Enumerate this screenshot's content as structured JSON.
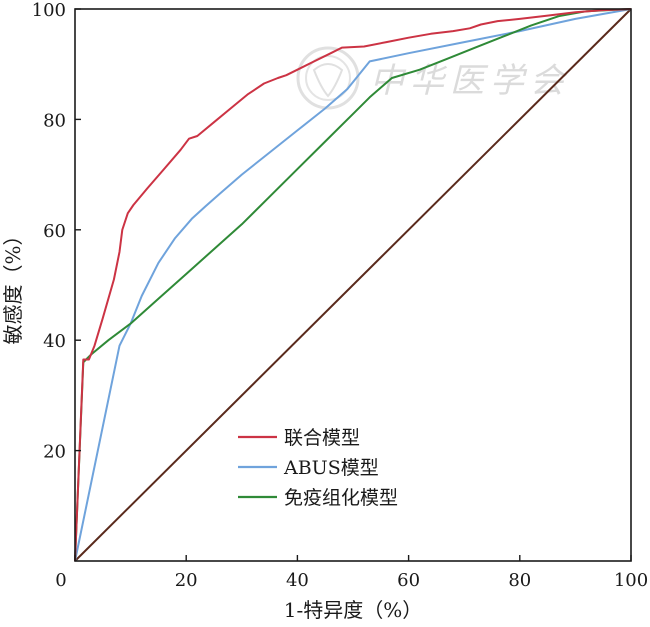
{
  "chart_data": {
    "type": "line",
    "xlabel": "1-特异度（%）",
    "ylabel": "敏感度（%）",
    "xlim": [
      0,
      100
    ],
    "ylim": [
      0,
      100
    ],
    "x_ticks": [
      "0",
      "20",
      "40",
      "60",
      "80",
      "100"
    ],
    "y_ticks": [
      "20",
      "40",
      "60",
      "80",
      "100"
    ],
    "grid": false,
    "legend_position": "bottom-center",
    "series": [
      {
        "name": "联合模型",
        "color": "#cc3344",
        "points": [
          [
            0,
            0
          ],
          [
            1.5,
            36.5
          ],
          [
            2.5,
            36.5
          ],
          [
            3.5,
            39
          ],
          [
            5,
            44
          ],
          [
            7,
            51
          ],
          [
            8,
            56
          ],
          [
            8.5,
            60
          ],
          [
            9.5,
            63
          ],
          [
            10.5,
            64.5
          ],
          [
            13,
            67.5
          ],
          [
            16,
            71
          ],
          [
            19,
            74.5
          ],
          [
            20.5,
            76.5
          ],
          [
            22,
            77
          ],
          [
            25,
            79.5
          ],
          [
            28,
            82
          ],
          [
            31,
            84.5
          ],
          [
            34,
            86.5
          ],
          [
            36.5,
            87.5
          ],
          [
            38,
            88
          ],
          [
            40,
            89
          ],
          [
            43,
            90.5
          ],
          [
            46,
            92
          ],
          [
            48,
            93
          ],
          [
            52,
            93.2
          ],
          [
            56,
            94
          ],
          [
            60,
            94.8
          ],
          [
            64,
            95.5
          ],
          [
            68,
            96
          ],
          [
            71,
            96.5
          ],
          [
            73,
            97.2
          ],
          [
            76,
            97.8
          ],
          [
            80,
            98.2
          ],
          [
            85,
            98.8
          ],
          [
            90,
            99.4
          ],
          [
            95,
            99.8
          ],
          [
            100,
            100
          ]
        ]
      },
      {
        "name": "ABUS模型",
        "color": "#6fa3dc",
        "points": [
          [
            0,
            0
          ],
          [
            8,
            39
          ],
          [
            10,
            43
          ],
          [
            12,
            48
          ],
          [
            15,
            54
          ],
          [
            18,
            58.5
          ],
          [
            21,
            62
          ],
          [
            23.5,
            64.3
          ],
          [
            26,
            66.5
          ],
          [
            30,
            70
          ],
          [
            35,
            74
          ],
          [
            40,
            78
          ],
          [
            45,
            82
          ],
          [
            49,
            85.5
          ],
          [
            53,
            90.5
          ],
          [
            60,
            92
          ],
          [
            70,
            94
          ],
          [
            80,
            96
          ],
          [
            90,
            98.2
          ],
          [
            100,
            100
          ]
        ]
      },
      {
        "name": "免疫组化模型",
        "color": "#2f8a37",
        "points": [
          [
            0,
            0
          ],
          [
            1.5,
            36
          ],
          [
            2,
            36.5
          ],
          [
            3,
            37.5
          ],
          [
            6,
            40
          ],
          [
            10,
            43
          ],
          [
            15,
            47.5
          ],
          [
            20,
            52
          ],
          [
            25,
            56.5
          ],
          [
            30,
            61
          ],
          [
            35,
            66
          ],
          [
            40,
            71
          ],
          [
            45,
            76
          ],
          [
            50,
            81
          ],
          [
            53,
            84
          ],
          [
            57,
            87.5
          ],
          [
            62,
            89
          ],
          [
            67,
            91
          ],
          [
            72,
            93
          ],
          [
            77,
            95
          ],
          [
            82,
            97
          ],
          [
            87,
            98.7
          ],
          [
            92,
            99.6
          ],
          [
            100,
            100
          ]
        ]
      },
      {
        "name": "",
        "color": "#5a2a1c",
        "points": [
          [
            0,
            0
          ],
          [
            100,
            100
          ]
        ]
      }
    ]
  },
  "watermark": {
    "text": "中华医学会"
  }
}
